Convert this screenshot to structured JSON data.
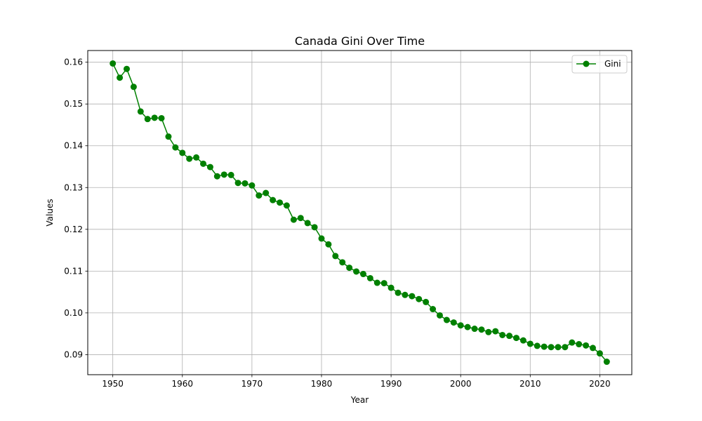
{
  "chart_data": {
    "type": "line",
    "title": "Canada Gini Over Time",
    "xlabel": "Year",
    "ylabel": "Values",
    "xlim": [
      1946.4,
      2024.6
    ],
    "ylim": [
      0.0852,
      0.1628
    ],
    "x_ticks": [
      1950,
      1960,
      1970,
      1980,
      1990,
      2000,
      2010,
      2020
    ],
    "y_ticks": [
      0.09,
      0.1,
      0.11,
      0.12,
      0.13,
      0.14,
      0.15,
      0.16
    ],
    "x_tick_labels": [
      "1950",
      "1960",
      "1970",
      "1980",
      "1990",
      "2000",
      "2010",
      "2020"
    ],
    "y_tick_labels": [
      "0.09",
      "0.10",
      "0.11",
      "0.12",
      "0.13",
      "0.14",
      "0.15",
      "0.16"
    ],
    "grid": true,
    "legend_position": "top-right",
    "colors": {
      "series": "#008000",
      "grid": "#b0b0b0",
      "axis": "#000000"
    },
    "series": [
      {
        "name": "Gini",
        "marker": "circle",
        "x": [
          1950,
          1951,
          1952,
          1953,
          1954,
          1955,
          1956,
          1957,
          1958,
          1959,
          1960,
          1961,
          1962,
          1963,
          1964,
          1965,
          1966,
          1967,
          1968,
          1969,
          1970,
          1971,
          1972,
          1973,
          1974,
          1975,
          1976,
          1977,
          1978,
          1979,
          1980,
          1981,
          1982,
          1983,
          1984,
          1985,
          1986,
          1987,
          1988,
          1989,
          1990,
          1991,
          1992,
          1993,
          1994,
          1995,
          1996,
          1997,
          1998,
          1999,
          2000,
          2001,
          2002,
          2003,
          2004,
          2005,
          2006,
          2007,
          2008,
          2009,
          2010,
          2011,
          2012,
          2013,
          2014,
          2015,
          2016,
          2017,
          2018,
          2019,
          2020,
          2021
        ],
        "values": [
          0.1597,
          0.1563,
          0.1584,
          0.1541,
          0.1482,
          0.1464,
          0.1467,
          0.1466,
          0.1422,
          0.1396,
          0.1383,
          0.1369,
          0.1372,
          0.1357,
          0.1349,
          0.1327,
          0.1331,
          0.133,
          0.1311,
          0.131,
          0.1305,
          0.1281,
          0.1287,
          0.127,
          0.1264,
          0.1257,
          0.1223,
          0.1227,
          0.1215,
          0.1205,
          0.1178,
          0.1164,
          0.1136,
          0.1121,
          0.1108,
          0.1099,
          0.1093,
          0.1083,
          0.1072,
          0.1071,
          0.106,
          0.1048,
          0.1043,
          0.104,
          0.1033,
          0.1026,
          0.1009,
          0.0994,
          0.0983,
          0.0977,
          0.097,
          0.0966,
          0.0962,
          0.096,
          0.0954,
          0.0956,
          0.0947,
          0.0945,
          0.094,
          0.0934,
          0.0926,
          0.0921,
          0.0919,
          0.0918,
          0.0918,
          0.0918,
          0.0929,
          0.0925,
          0.0922,
          0.0916,
          0.0903,
          0.0883
        ]
      }
    ]
  }
}
